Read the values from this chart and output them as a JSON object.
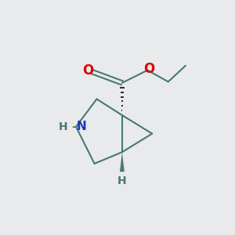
{
  "bg_color": "#e8eaeb",
  "bond_color": "#4a7870",
  "bond_lw": 1.5,
  "atom_colors": {
    "O": "#dd0000",
    "N": "#1a35c0",
    "H": "#4a7870",
    "C": "#4a7870"
  },
  "font_size_atom": 11,
  "font_size_H": 10,
  "font_size_label": 10
}
